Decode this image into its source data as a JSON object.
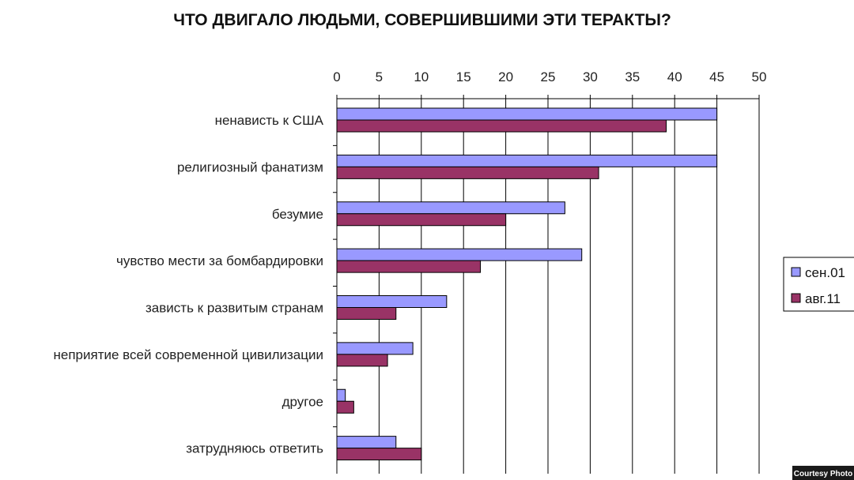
{
  "page": {
    "credit": "Courtesy Photo"
  },
  "chart_data": {
    "type": "bar",
    "orientation": "horizontal",
    "title": "ЧТО ДВИГАЛО ЛЮДЬМИ, СОВЕРШИВШИМИ ЭТИ ТЕРАКТЫ?",
    "xlabel": "",
    "ylabel": "",
    "xlim": [
      0,
      50
    ],
    "x_ticks": [
      0,
      5,
      10,
      15,
      20,
      25,
      30,
      35,
      40,
      45,
      50
    ],
    "x_axis_position": "top",
    "grid": true,
    "legend_position": "right",
    "categories": [
      "ненависть к США",
      "религиозный фанатизм",
      "безумие",
      "чувство мести за бомбардировки",
      "зависть к развитым странам",
      "неприятие всей современной цивилизации",
      "другое",
      "затрудняюсь ответить"
    ],
    "series": [
      {
        "name": "сен.01",
        "color": "#9999ff",
        "values": [
          45,
          45,
          27,
          29,
          13,
          9,
          1,
          7
        ]
      },
      {
        "name": "авг.11",
        "color": "#993366",
        "values": [
          39,
          31,
          20,
          17,
          7,
          6,
          2,
          10
        ]
      }
    ]
  }
}
